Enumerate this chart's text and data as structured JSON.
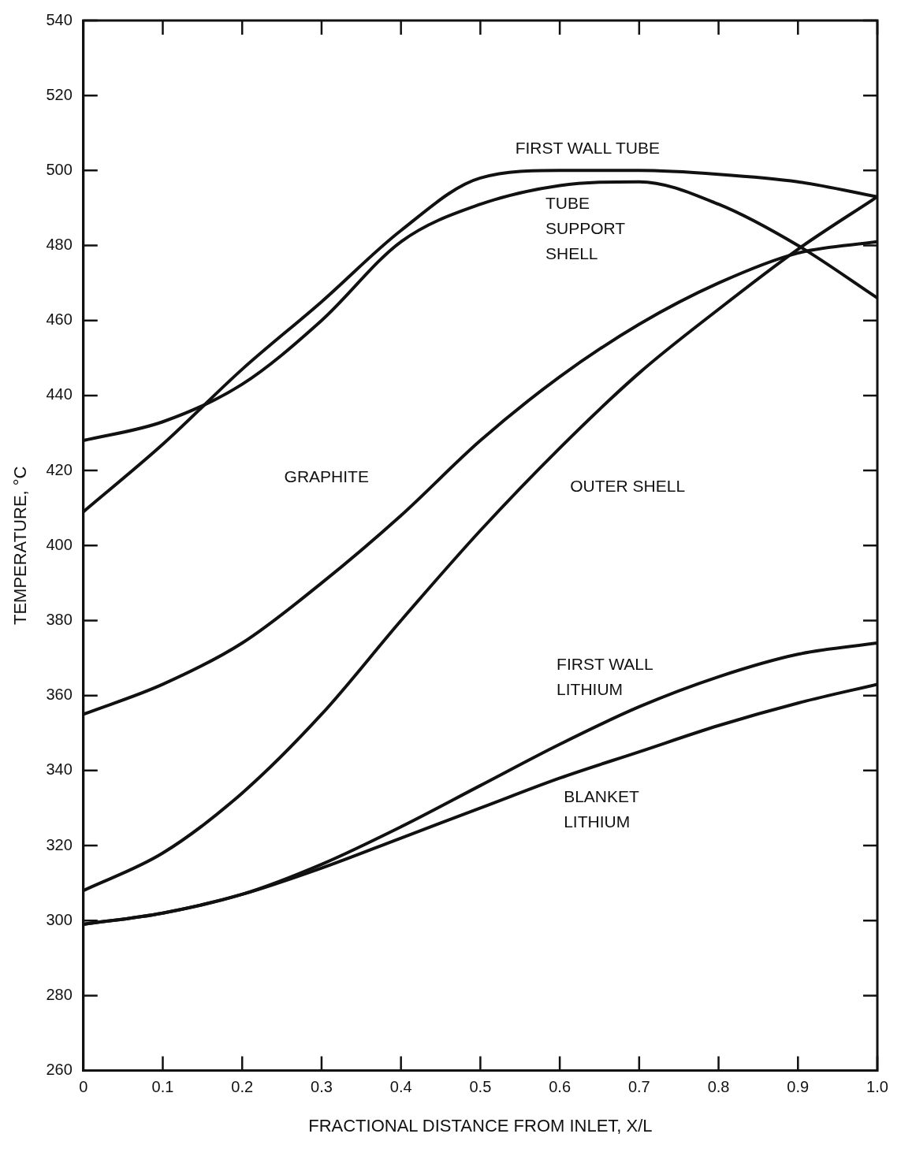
{
  "chart_data": {
    "type": "line",
    "xlabel": "FRACTIONAL DISTANCE FROM INLET, X/L",
    "ylabel": "TEMPERATURE, °C",
    "x": [
      0,
      0.1,
      0.2,
      0.3,
      0.4,
      0.5,
      0.6,
      0.7,
      0.8,
      0.9,
      1.0
    ],
    "xlim": [
      0,
      1
    ],
    "xticks": [
      {
        "value": 0,
        "label": "0"
      },
      0.1,
      0.2,
      0.3,
      0.4,
      0.5,
      0.6,
      0.7,
      0.8,
      0.9,
      {
        "value": 1,
        "label": "1.0"
      }
    ],
    "ylim": [
      260,
      540
    ],
    "yticks": [
      260,
      280,
      300,
      320,
      340,
      360,
      380,
      400,
      420,
      440,
      460,
      480,
      500,
      520,
      540
    ],
    "grid": false,
    "legend": false,
    "marker": "none",
    "line_style": "solid",
    "series": [
      {
        "name": "FIRST WALL TUBE",
        "color": "#111111",
        "values": [
          409,
          427,
          447,
          465,
          484,
          498,
          500,
          500,
          499,
          497,
          493
        ]
      },
      {
        "name": "TUBE SUPPORT SHELL",
        "color": "#111111",
        "values": [
          428,
          433,
          443,
          460,
          481,
          491,
          496,
          497,
          491,
          480,
          466
        ]
      },
      {
        "name": "GRAPHITE",
        "color": "#111111",
        "values": [
          355,
          363,
          374,
          390,
          408,
          428,
          445,
          459,
          470,
          478,
          481
        ]
      },
      {
        "name": "OUTER SHELL",
        "color": "#111111",
        "values": [
          308,
          318,
          334,
          355,
          380,
          404,
          426,
          446,
          463,
          479,
          493
        ]
      },
      {
        "name": "FIRST WALL LITHIUM",
        "color": "#111111",
        "values": [
          299,
          302,
          307,
          315,
          325,
          336,
          347,
          357,
          365,
          371,
          374
        ]
      },
      {
        "name": "BLANKET LITHIUM",
        "color": "#111111",
        "values": [
          299,
          302,
          307,
          314,
          322,
          330,
          338,
          345,
          352,
          358,
          363
        ]
      }
    ]
  }
}
